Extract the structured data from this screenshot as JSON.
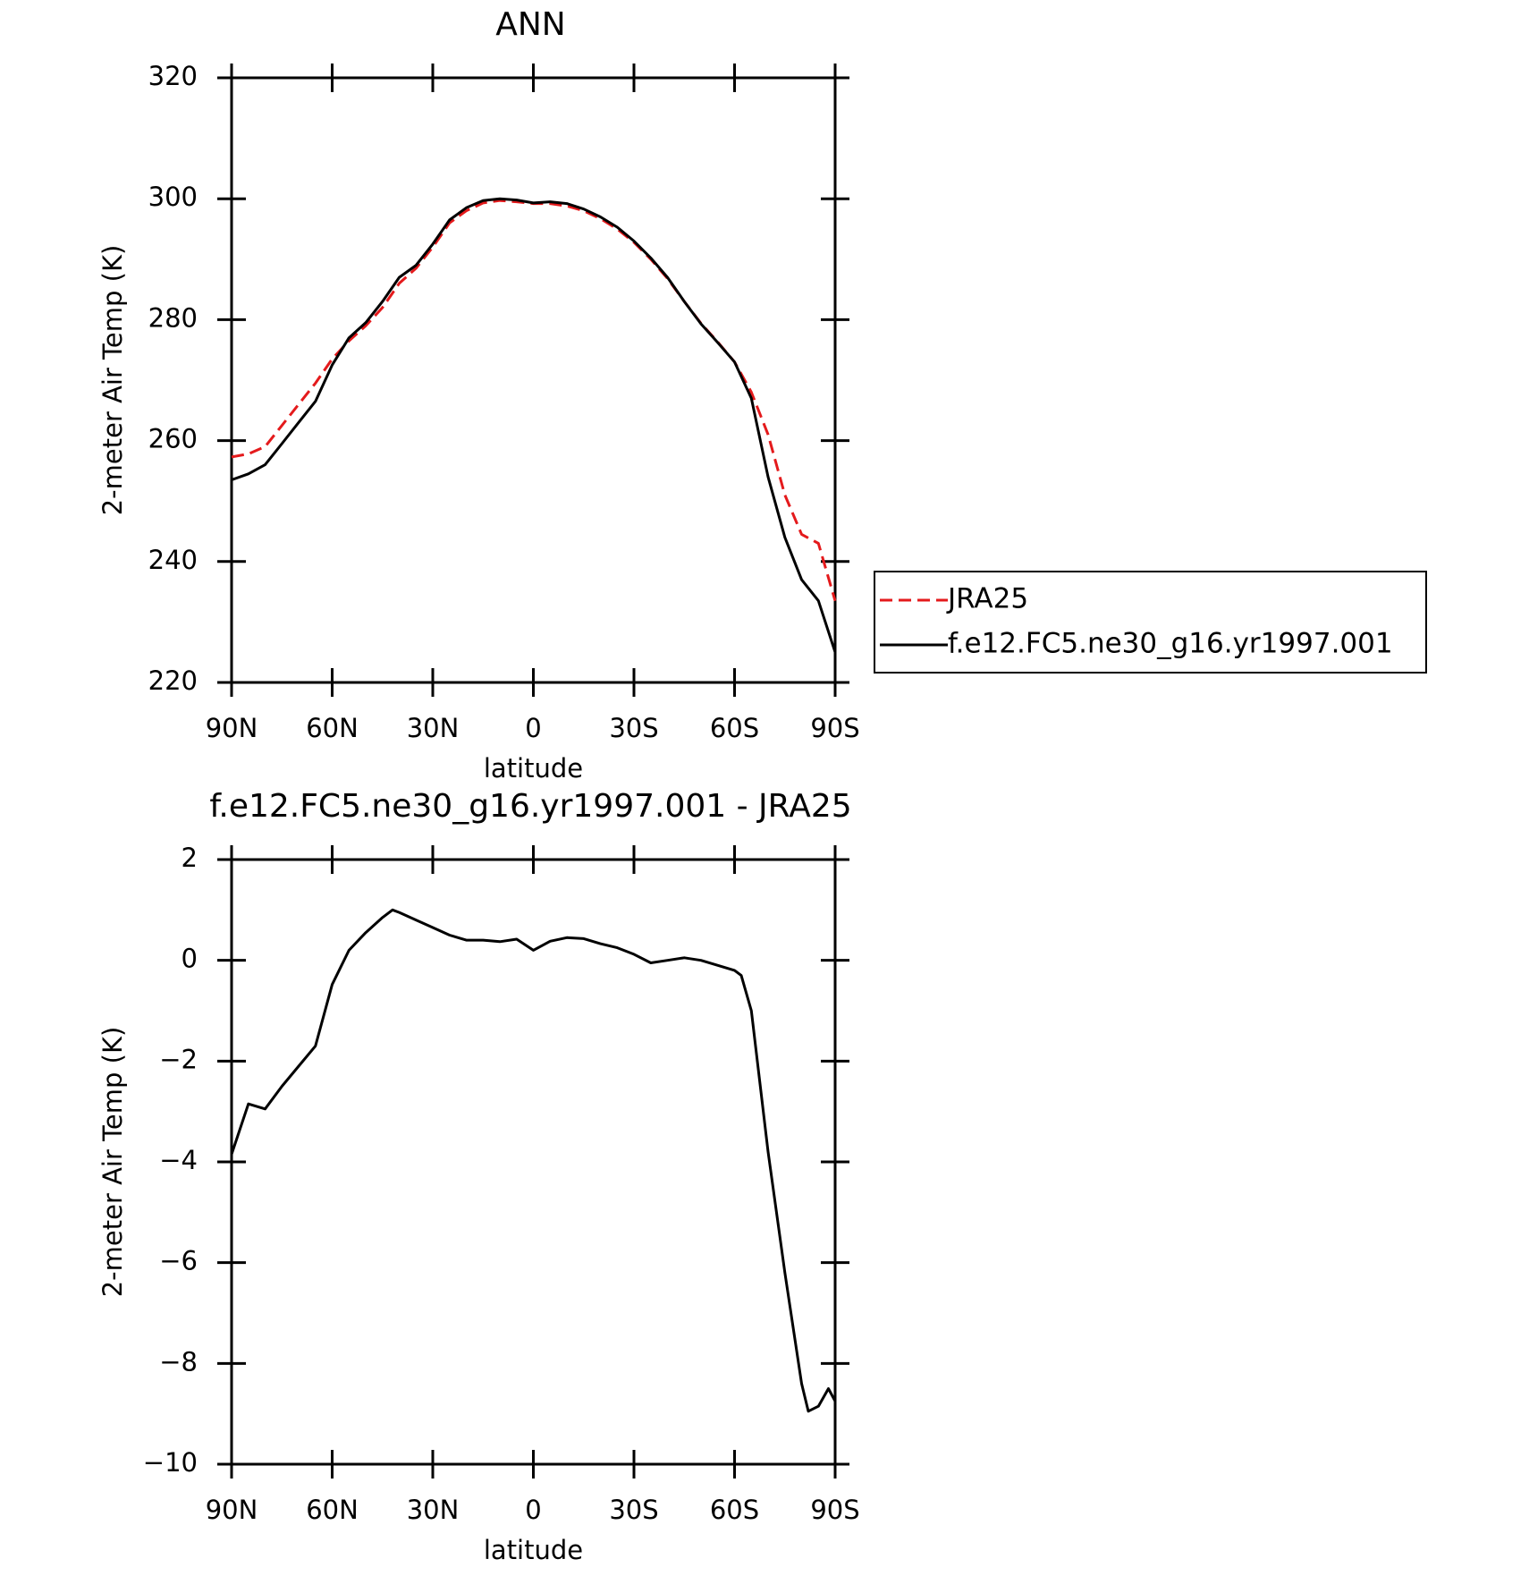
{
  "chart_data": [
    {
      "type": "line",
      "title": "ANN",
      "xlabel": "latitude",
      "ylabel": "2-meter Air Temp (K)",
      "x": [
        90,
        85,
        80,
        75,
        70,
        65,
        60,
        55,
        50,
        45,
        40,
        35,
        30,
        25,
        20,
        15,
        10,
        5,
        0,
        -5,
        -10,
        -15,
        -20,
        -25,
        -30,
        -35,
        -40,
        -45,
        -50,
        -55,
        -60,
        -65,
        -70,
        -75,
        -80,
        -85,
        -90
      ],
      "series": [
        {
          "name": "JRA25",
          "color": "#e41a1c",
          "dashed": true,
          "values": [
            257.3,
            257.8,
            259,
            262.5,
            266,
            269.5,
            273.5,
            276.5,
            279,
            282,
            286,
            288.5,
            292,
            296,
            298,
            299.3,
            299.7,
            299.5,
            299.2,
            299.2,
            298.8,
            298,
            296.7,
            295,
            292.8,
            290,
            286.8,
            283,
            279.4,
            276.3,
            273,
            268,
            261,
            251,
            244.5,
            243,
            233.5
          ]
        },
        {
          "name": "f.e12.FC5.ne30_g16.yr1997.001",
          "color": "#000000",
          "dashed": false,
          "values": [
            253.5,
            254.5,
            256,
            259.5,
            263,
            266.5,
            272.5,
            277,
            279.5,
            283,
            287,
            289,
            292.5,
            296.5,
            298.5,
            299.7,
            300,
            299.8,
            299.3,
            299.5,
            299.2,
            298.3,
            297,
            295.3,
            293,
            290.2,
            287,
            283,
            279.3,
            276.2,
            273,
            267,
            254,
            244,
            237,
            233.5,
            225
          ]
        }
      ],
      "xlim": [
        90,
        -90
      ],
      "xticks": [
        {
          "value": 90,
          "label": "90N"
        },
        {
          "value": 60,
          "label": "60N"
        },
        {
          "value": 30,
          "label": "30N"
        },
        0,
        {
          "value": -30,
          "label": "30S"
        },
        {
          "value": -60,
          "label": "60S"
        },
        {
          "value": -90,
          "label": "90S"
        }
      ],
      "ylim": [
        220,
        320
      ],
      "yticks": [
        220,
        240,
        260,
        280,
        300,
        320
      ],
      "legend": "right"
    },
    {
      "type": "line",
      "title": "f.e12.FC5.ne30_g16.yr1997.001 - JRA25",
      "xlabel": "latitude",
      "ylabel": "2-meter Air Temp (K)",
      "x": [
        90,
        85,
        80,
        75,
        70,
        65,
        60,
        55,
        50,
        45,
        42,
        40,
        35,
        30,
        25,
        20,
        15,
        10,
        5,
        0,
        -5,
        -10,
        -15,
        -20,
        -25,
        -30,
        -35,
        -40,
        -45,
        -50,
        -55,
        -60,
        -62,
        -65,
        -70,
        -75,
        -80,
        -82,
        -85,
        -88,
        -90
      ],
      "series": [
        {
          "color": "#000000",
          "dashed": false,
          "values": [
            -3.85,
            -2.85,
            -2.95,
            -2.5,
            -2.1,
            -1.7,
            -0.48,
            0.2,
            0.55,
            0.85,
            1.0,
            0.95,
            0.8,
            0.65,
            0.5,
            0.4,
            0.4,
            0.37,
            0.42,
            0.2,
            0.38,
            0.45,
            0.43,
            0.33,
            0.25,
            0.12,
            -0.05,
            0,
            0.05,
            0,
            -0.1,
            -0.2,
            -0.3,
            -1.0,
            -3.8,
            -6.2,
            -8.4,
            -8.95,
            -8.85,
            -8.5,
            -8.75
          ]
        }
      ],
      "xlim": [
        90,
        -90
      ],
      "xticks": [
        {
          "value": 90,
          "label": "90N"
        },
        {
          "value": 60,
          "label": "60N"
        },
        {
          "value": 30,
          "label": "30N"
        },
        0,
        {
          "value": -30,
          "label": "30S"
        },
        {
          "value": -60,
          "label": "60S"
        },
        {
          "value": -90,
          "label": "90S"
        }
      ],
      "ylim": [
        -10,
        2
      ],
      "yticks": [
        {
          "value": -10,
          "label": "−10"
        },
        {
          "value": -8,
          "label": "−8"
        },
        {
          "value": -6,
          "label": "−6"
        },
        {
          "value": -4,
          "label": "−4"
        },
        {
          "value": -2,
          "label": "−2"
        },
        0,
        2
      ]
    }
  ]
}
